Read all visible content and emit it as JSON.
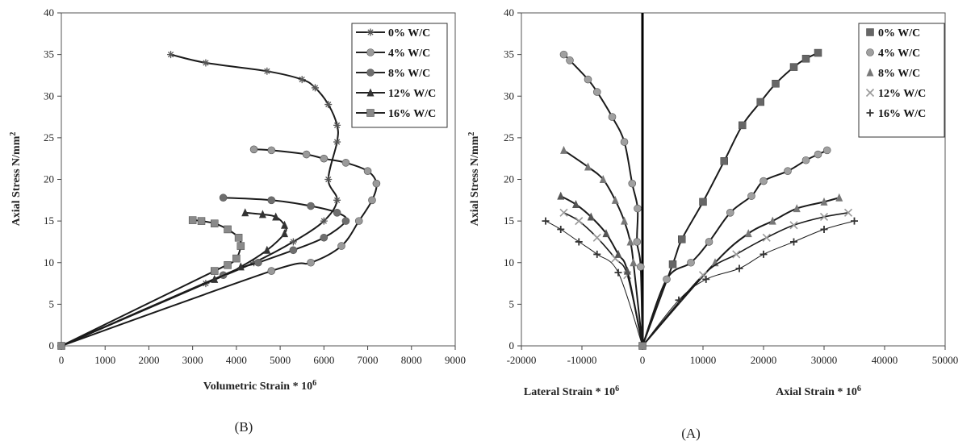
{
  "chart_data": [
    {
      "id": "B",
      "type": "line",
      "caption": "(B)",
      "xlabel": "Volumetric Strain * 10",
      "xlabel_sup": "6",
      "ylabel": "Axial Stress N/mm",
      "ylabel_sup": "2",
      "xlim": [
        0,
        9000
      ],
      "ylim": [
        0,
        40
      ],
      "x_ticks": [
        0,
        1000,
        2000,
        3000,
        4000,
        5000,
        6000,
        7000,
        8000,
        9000
      ],
      "y_ticks": [
        0,
        5,
        10,
        15,
        20,
        25,
        30,
        35,
        40
      ],
      "grid": false,
      "legend_position": "top-right",
      "series": [
        {
          "name": "0% W/C",
          "marker": "star",
          "color": "#555555",
          "points": [
            [
              0,
              0
            ],
            [
              3300,
              7.5
            ],
            [
              4400,
              10
            ],
            [
              5300,
              12.5
            ],
            [
              6000,
              15
            ],
            [
              6300,
              17.5
            ],
            [
              6100,
              20
            ],
            [
              6300,
              24.5
            ],
            [
              6300,
              26.5
            ],
            [
              6100,
              29
            ],
            [
              5800,
              31
            ],
            [
              5500,
              32
            ],
            [
              4700,
              33
            ],
            [
              3300,
              34
            ],
            [
              2500,
              35
            ]
          ]
        },
        {
          "name": "4% W/C",
          "marker": "circle",
          "color": "#9a9a9a",
          "points": [
            [
              0,
              0
            ],
            [
              4800,
              9
            ],
            [
              5700,
              10
            ],
            [
              6400,
              12
            ],
            [
              6800,
              15
            ],
            [
              7100,
              17.5
            ],
            [
              7200,
              19.5
            ],
            [
              7000,
              21
            ],
            [
              6500,
              22
            ],
            [
              6000,
              22.5
            ],
            [
              5600,
              23
            ],
            [
              4800,
              23.5
            ],
            [
              4400,
              23.6
            ]
          ]
        },
        {
          "name": "8% W/C",
          "marker": "circle",
          "color": "#6e6e6e",
          "points": [
            [
              0,
              0
            ],
            [
              3700,
              8.5
            ],
            [
              4500,
              10
            ],
            [
              5300,
              11.5
            ],
            [
              6000,
              13
            ],
            [
              6500,
              15
            ],
            [
              6300,
              16
            ],
            [
              5700,
              16.8
            ],
            [
              4800,
              17.5
            ],
            [
              3700,
              17.8
            ]
          ]
        },
        {
          "name": "12% W/C",
          "marker": "triangle",
          "color": "#333333",
          "points": [
            [
              0,
              0
            ],
            [
              3500,
              8
            ],
            [
              4100,
              9.5
            ],
            [
              4700,
              11.5
            ],
            [
              5100,
              13.5
            ],
            [
              5100,
              14.5
            ],
            [
              4900,
              15.5
            ],
            [
              4600,
              15.8
            ],
            [
              4200,
              16
            ]
          ]
        },
        {
          "name": "16% W/C",
          "marker": "square",
          "color": "#8a8a8a",
          "points": [
            [
              0,
              0
            ],
            [
              3500,
              9
            ],
            [
              3800,
              9.7
            ],
            [
              4000,
              10.5
            ],
            [
              4100,
              12
            ],
            [
              4050,
              13
            ],
            [
              3800,
              14
            ],
            [
              3500,
              14.7
            ],
            [
              3200,
              15
            ],
            [
              3000,
              15.1
            ]
          ]
        }
      ]
    },
    {
      "id": "A",
      "type": "line",
      "caption": "(A)",
      "xlabel_left": "Lateral Strain * 10",
      "xlabel_left_sup": "6",
      "xlabel_right": "Axial Strain * 10",
      "xlabel_right_sup": "6",
      "ylabel": "Axial Stress N/mm",
      "ylabel_sup": "2",
      "xlim": [
        -20000,
        50000
      ],
      "ylim": [
        0,
        40
      ],
      "x_ticks": [
        -20000,
        -10000,
        0,
        10000,
        20000,
        30000,
        40000,
        50000
      ],
      "x_tick_labels": [
        "-20000",
        "-10000",
        "0",
        "10000",
        "20000",
        "30000",
        "40000",
        "50000"
      ],
      "y_ticks": [
        0,
        5,
        10,
        15,
        20,
        25,
        30,
        35,
        40
      ],
      "grid": false,
      "legend_position": "top-right",
      "series": [
        {
          "name": "0% W/C",
          "marker": "square",
          "color": "#666666",
          "axial": [
            [
              0,
              0
            ],
            [
              5000,
              9.8
            ],
            [
              6500,
              12.8
            ],
            [
              10000,
              17.3
            ],
            [
              13500,
              22.2
            ],
            [
              16500,
              26.5
            ],
            [
              19500,
              29.3
            ],
            [
              22000,
              31.5
            ],
            [
              25000,
              33.5
            ],
            [
              27000,
              34.5
            ],
            [
              29000,
              35.2
            ]
          ],
          "lateral": []
        },
        {
          "name": "4% W/C",
          "marker": "circle",
          "color": "#a0a0a0",
          "axial": [
            [
              0,
              0
            ],
            [
              4000,
              8
            ],
            [
              8000,
              10
            ],
            [
              11000,
              12.5
            ],
            [
              14500,
              16
            ],
            [
              18000,
              18
            ],
            [
              20000,
              19.8
            ],
            [
              24000,
              21
            ],
            [
              27000,
              22.3
            ],
            [
              29000,
              23
            ],
            [
              30500,
              23.5
            ]
          ],
          "lateral": [
            [
              0,
              0
            ],
            [
              -300,
              9.5
            ],
            [
              -900,
              12.5
            ],
            [
              -800,
              16.5
            ],
            [
              -1700,
              19.5
            ],
            [
              -3000,
              24.5
            ],
            [
              -5000,
              27.5
            ],
            [
              -7500,
              30.5
            ],
            [
              -9000,
              32
            ],
            [
              -12000,
              34.3
            ],
            [
              -13000,
              35
            ]
          ]
        },
        {
          "name": "8% W/C",
          "marker": "triangle",
          "color": "#777777",
          "axial": [
            [
              0,
              0
            ],
            [
              12000,
              10
            ],
            [
              17500,
              13.5
            ],
            [
              21500,
              15
            ],
            [
              25500,
              16.5
            ],
            [
              30000,
              17.3
            ],
            [
              32500,
              17.8
            ]
          ],
          "lateral": [
            [
              0,
              0
            ],
            [
              -1500,
              10
            ],
            [
              -2000,
              12.5
            ],
            [
              -3000,
              15
            ],
            [
              -4500,
              17.5
            ],
            [
              -6500,
              20
            ],
            [
              -9000,
              21.5
            ],
            [
              -13000,
              23.5
            ]
          ]
        },
        {
          "name": "12% W/C",
          "marker": "x",
          "color": "#9a9a9a",
          "axial": [
            [
              0,
              0
            ],
            [
              10000,
              8.5
            ],
            [
              15500,
              11
            ],
            [
              20500,
              13
            ],
            [
              25000,
              14.5
            ],
            [
              30000,
              15.5
            ],
            [
              34000,
              16
            ]
          ],
          "lateral": [
            [
              0,
              0
            ],
            [
              -2500,
              8.5
            ],
            [
              -4500,
              10.5
            ],
            [
              -7500,
              13
            ],
            [
              -10500,
              15
            ],
            [
              -13000,
              16
            ]
          ]
        },
        {
          "name": "16% W/C",
          "marker": "plus",
          "color": "#333333",
          "axial": [
            [
              0,
              0
            ],
            [
              6000,
              5.5
            ],
            [
              10500,
              8
            ],
            [
              16000,
              9.3
            ],
            [
              20000,
              11
            ],
            [
              25000,
              12.5
            ],
            [
              30000,
              14
            ],
            [
              35000,
              15
            ]
          ],
          "lateral": [
            [
              0,
              0
            ],
            [
              -4000,
              8.8
            ],
            [
              -7500,
              11
            ],
            [
              -10500,
              12.5
            ],
            [
              -13500,
              14
            ],
            [
              -16000,
              15
            ]
          ]
        }
      ],
      "extra_lateral": [
        {
          "series": "8% W/C",
          "color": "#555555",
          "points": [
            [
              0,
              0
            ],
            [
              -2500,
              9
            ],
            [
              -4000,
              11
            ],
            [
              -6000,
              13.5
            ],
            [
              -8500,
              15.5
            ],
            [
              -11000,
              17
            ],
            [
              -13500,
              18
            ]
          ]
        }
      ]
    }
  ]
}
